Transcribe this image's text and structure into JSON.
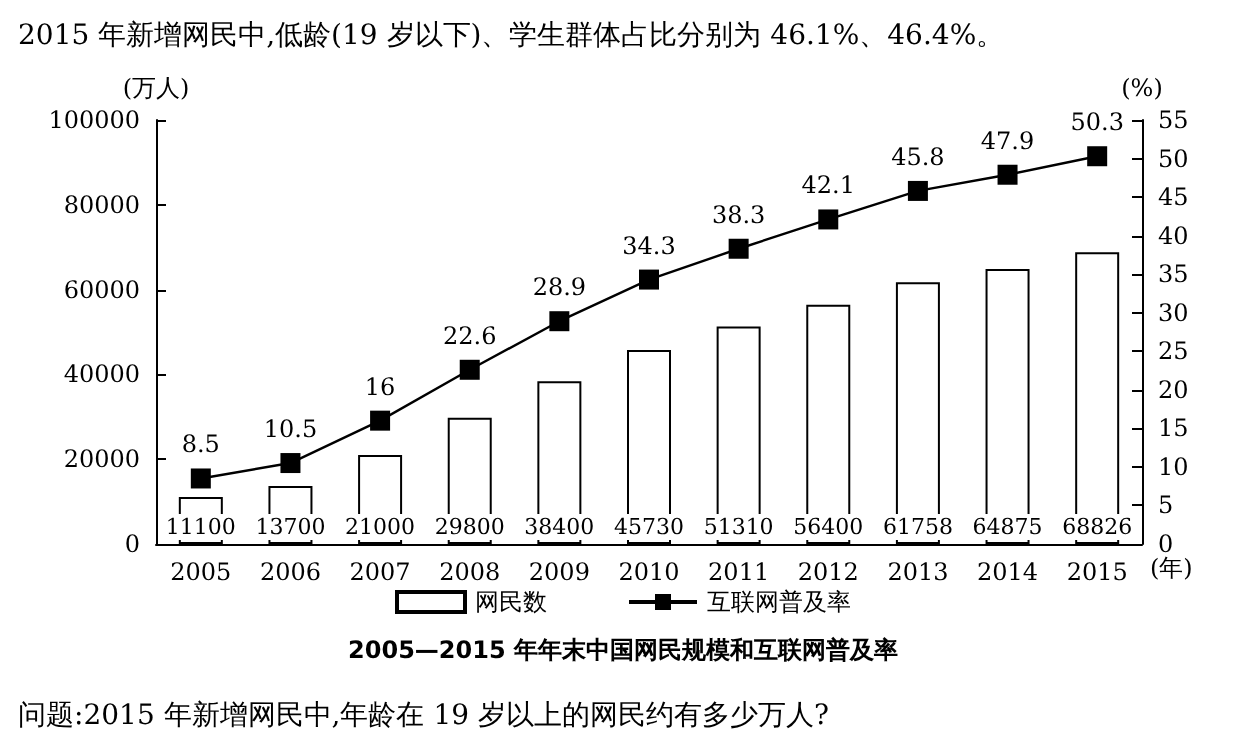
{
  "chart_data": {
    "type": "bar",
    "title": "2005—2015 年年末中国网民规模和互联网普及率",
    "xlabel": "(年)",
    "ylabel": "(万人)",
    "y2label": "(%)",
    "annotations": [
      "2015 年新增网民中,低龄(19 岁以下)、学生群体占比分别为 46.1%、46.4%。",
      "问题:2015 年新增网民中,年龄在 19 岁以上的网民约有多少万人?"
    ],
    "categories": [
      "2005",
      "2006",
      "2007",
      "2008",
      "2009",
      "2010",
      "2011",
      "2012",
      "2013",
      "2014",
      "2015"
    ],
    "series": [
      {
        "name": "网民数",
        "color": "#ffffff",
        "values": [
          11100,
          13700,
          21000,
          29800,
          38400,
          45730,
          51310,
          56400,
          61758,
          64875,
          68826
        ]
      },
      {
        "name": "互联网普及率",
        "type": "line",
        "axis": "y2",
        "color": "#000000",
        "marker": "square",
        "values": [
          8.5,
          10.5,
          16,
          22.6,
          28.9,
          34.3,
          38.3,
          42.1,
          45.8,
          47.9,
          50.3
        ]
      }
    ],
    "ylim": [
      0,
      100000
    ],
    "yticks": [
      0,
      20000,
      40000,
      60000,
      80000,
      100000
    ],
    "y2lim": [
      0,
      55
    ],
    "y2ticks": [
      0,
      5,
      10,
      15,
      20,
      25,
      30,
      35,
      40,
      45,
      50,
      55
    ],
    "data_labels": true,
    "legend": "bottom",
    "grid": false
  }
}
